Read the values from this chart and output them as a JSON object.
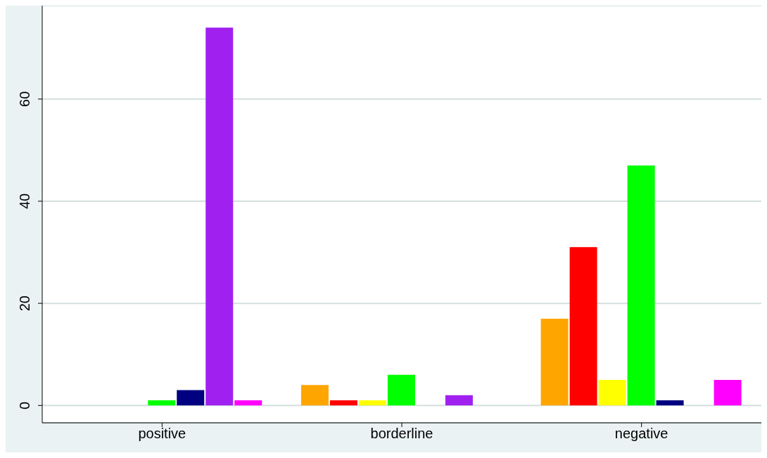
{
  "chart_data": {
    "type": "bar",
    "categories": [
      "positive",
      "borderline",
      "negative"
    ],
    "series": [
      {
        "color": "#ffa500",
        "values": [
          0,
          4,
          17
        ]
      },
      {
        "color": "#ff0000",
        "values": [
          0,
          1,
          31
        ]
      },
      {
        "color": "#ffff00",
        "values": [
          0,
          1,
          5
        ]
      },
      {
        "color": "#00ff00",
        "values": [
          1,
          6,
          47
        ]
      },
      {
        "color": "#000080",
        "values": [
          3,
          0,
          1
        ]
      },
      {
        "color": "#a020f0",
        "values": [
          74,
          2,
          0
        ]
      },
      {
        "color": "#ff00ff",
        "values": [
          1,
          0,
          5
        ]
      }
    ],
    "ylim": [
      -3.4,
      78.3
    ],
    "yticks": [
      0,
      20,
      40,
      60
    ],
    "grid": "y",
    "legend": false
  }
}
